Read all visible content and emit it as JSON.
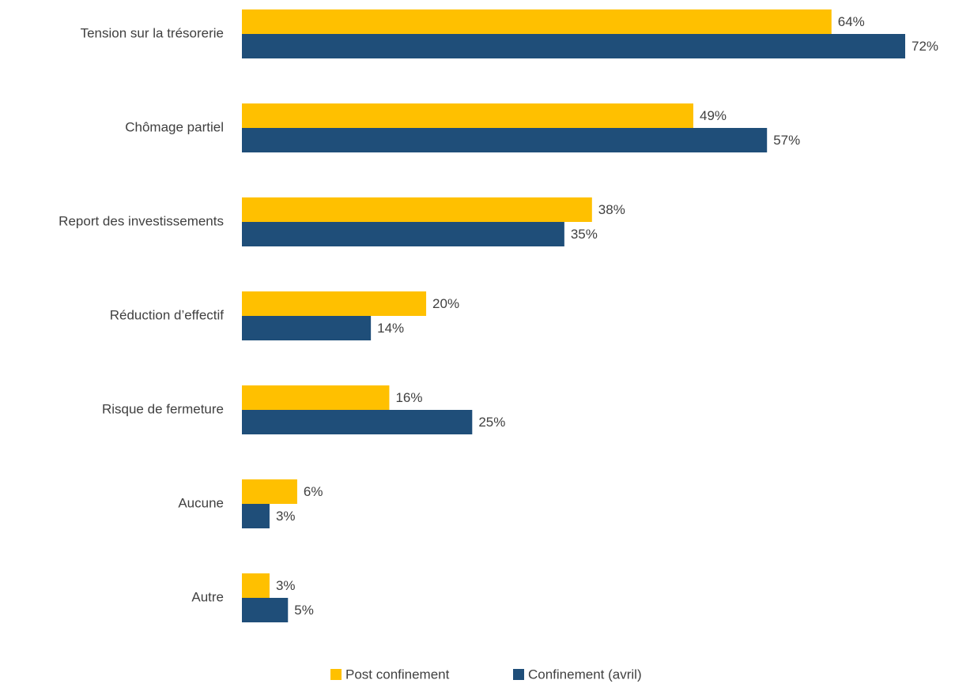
{
  "chart_data": {
    "type": "hbar",
    "categories": [
      "Tension sur la trésorerie",
      "Chômage partiel",
      "Report des investissements",
      "Réduction d’effectif",
      "Risque de fermeture",
      "Aucune",
      "Autre"
    ],
    "series": [
      {
        "name": "Post confinement",
        "color": "#FFC000",
        "values": [
          64,
          49,
          38,
          20,
          16,
          6,
          3
        ],
        "value_labels": [
          "64%",
          "49%",
          "38%",
          "20%",
          "16%",
          "6%",
          "3%"
        ]
      },
      {
        "name": "Confinement (avril)",
        "color": "#1F4E79",
        "values": [
          72,
          57,
          35,
          14,
          25,
          3,
          5
        ],
        "value_labels": [
          "72%",
          "57%",
          "35%",
          "14%",
          "25%",
          "3%",
          "5%"
        ]
      }
    ],
    "legend": "bottom"
  }
}
